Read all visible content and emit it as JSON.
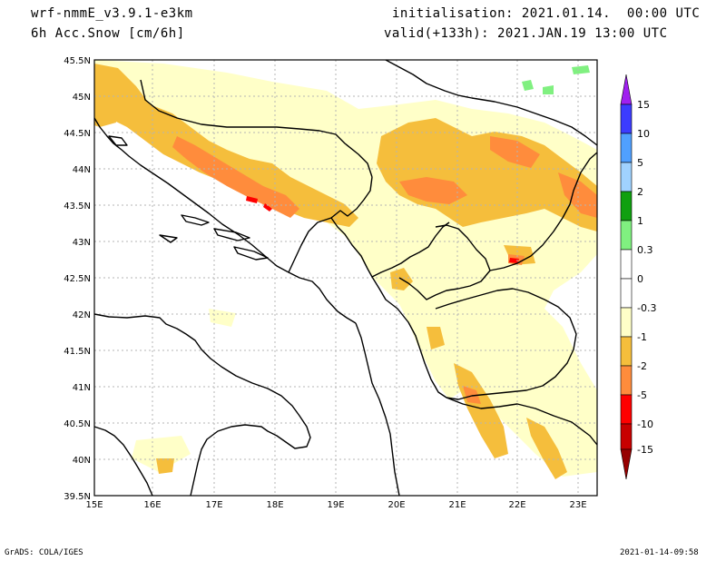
{
  "header": {
    "model": "wrf-nmmE_v3.9.1-e3km",
    "variable": "6h Acc.Snow [cm/6h]",
    "init": "initialisation: 2021.01.14.  00:00 UTC",
    "valid": "valid(+133h): 2021.JAN.19 13:00 UTC"
  },
  "axes": {
    "lat_labels": [
      "45.5N",
      "45N",
      "44.5N",
      "44N",
      "43.5N",
      "43N",
      "42.5N",
      "42N",
      "41.5N",
      "41N",
      "40.5N",
      "40N",
      "39.5N"
    ],
    "lon_labels": [
      "15E",
      "16E",
      "17E",
      "18E",
      "19E",
      "20E",
      "21E",
      "22E",
      "23E"
    ]
  },
  "legend": {
    "labels": [
      "15",
      "10",
      "5",
      "2",
      "1",
      "0.3",
      "0",
      "-0.3",
      "-1",
      "-2",
      "-5",
      "-10",
      "-15"
    ],
    "colors": [
      "#a020f0",
      "#3c3cff",
      "#50a0ff",
      "#a0d2ff",
      "#10a010",
      "#80f080",
      "#ffffff",
      "#ffffff",
      "#ffffc8",
      "#f5be3c",
      "#ff8c3c",
      "#ff0000",
      "#c80000",
      "#960000"
    ]
  },
  "footer": {
    "left": "GrADS: COLA/IGES",
    "right": "2021-01-14-09:58"
  },
  "colors": {
    "coast": "#000000",
    "grid": "#b4b4b4",
    "light_snow": "#ffffc8",
    "moderate_snow": "#f5be3c",
    "heavy_snow": "#ff8c3c",
    "very_heavy_snow": "#ff0000",
    "positive_change": "#80f080"
  }
}
